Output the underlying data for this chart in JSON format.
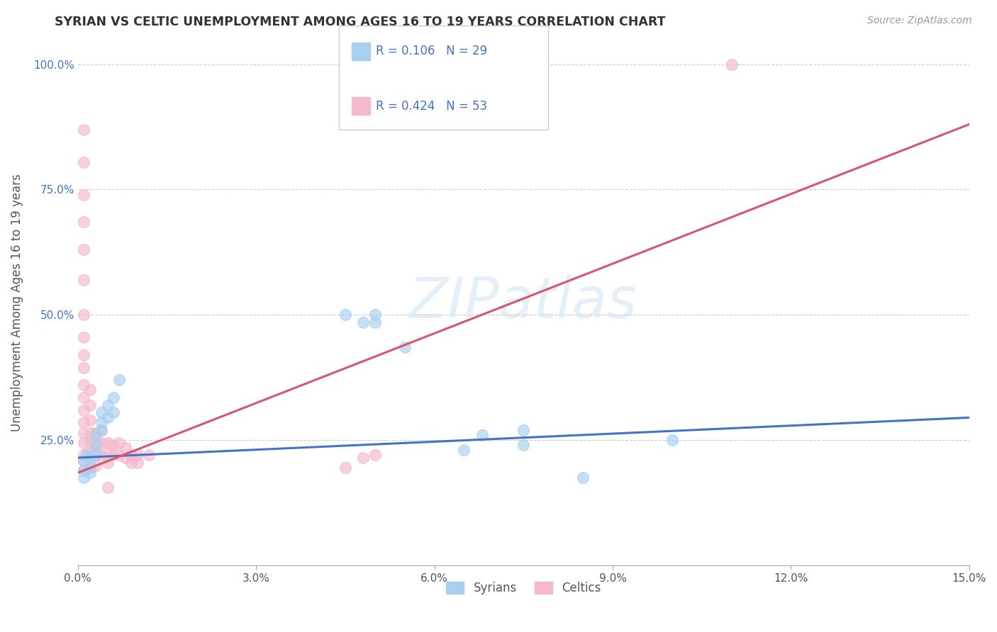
{
  "title": "SYRIAN VS CELTIC UNEMPLOYMENT AMONG AGES 16 TO 19 YEARS CORRELATION CHART",
  "source": "Source: ZipAtlas.com",
  "ylabel": "Unemployment Among Ages 16 to 19 years",
  "xlim": [
    0.0,
    0.15
  ],
  "ylim": [
    0.0,
    1.05
  ],
  "xticks": [
    0.0,
    0.03,
    0.06,
    0.09,
    0.12,
    0.15
  ],
  "xticklabels": [
    "0.0%",
    "3.0%",
    "6.0%",
    "9.0%",
    "12.0%",
    "15.0%"
  ],
  "yticks": [
    0.25,
    0.5,
    0.75,
    1.0
  ],
  "yticklabels": [
    "25.0%",
    "50.0%",
    "75.0%",
    "100.0%"
  ],
  "syrian_R": 0.106,
  "syrian_N": 29,
  "celtic_R": 0.424,
  "celtic_N": 53,
  "syrian_color": "#a8cff0",
  "celtic_color": "#f5b8cc",
  "syrian_line_color": "#4472c4",
  "celtic_line_color": "#d9546e",
  "syrian_line": [
    0.0,
    0.215,
    0.15,
    0.295
  ],
  "celtic_line": [
    0.0,
    0.185,
    0.15,
    0.88
  ],
  "syrian_points": [
    [
      0.001,
      0.19
    ],
    [
      0.001,
      0.21
    ],
    [
      0.001,
      0.175
    ],
    [
      0.0015,
      0.22
    ],
    [
      0.002,
      0.2
    ],
    [
      0.002,
      0.185
    ],
    [
      0.002,
      0.215
    ],
    [
      0.003,
      0.22
    ],
    [
      0.003,
      0.24
    ],
    [
      0.003,
      0.26
    ],
    [
      0.004,
      0.27
    ],
    [
      0.004,
      0.285
    ],
    [
      0.004,
      0.305
    ],
    [
      0.005,
      0.295
    ],
    [
      0.005,
      0.32
    ],
    [
      0.006,
      0.305
    ],
    [
      0.006,
      0.335
    ],
    [
      0.007,
      0.37
    ],
    [
      0.045,
      0.5
    ],
    [
      0.048,
      0.485
    ],
    [
      0.05,
      0.5
    ],
    [
      0.05,
      0.485
    ],
    [
      0.055,
      0.435
    ],
    [
      0.065,
      0.23
    ],
    [
      0.068,
      0.26
    ],
    [
      0.075,
      0.27
    ],
    [
      0.075,
      0.24
    ],
    [
      0.085,
      0.175
    ],
    [
      0.1,
      0.25
    ]
  ],
  "celtic_points": [
    [
      0.001,
      0.19
    ],
    [
      0.001,
      0.21
    ],
    [
      0.001,
      0.22
    ],
    [
      0.001,
      0.245
    ],
    [
      0.001,
      0.265
    ],
    [
      0.001,
      0.285
    ],
    [
      0.001,
      0.31
    ],
    [
      0.001,
      0.335
    ],
    [
      0.001,
      0.36
    ],
    [
      0.001,
      0.395
    ],
    [
      0.001,
      0.42
    ],
    [
      0.001,
      0.455
    ],
    [
      0.001,
      0.5
    ],
    [
      0.001,
      0.57
    ],
    [
      0.001,
      0.63
    ],
    [
      0.001,
      0.685
    ],
    [
      0.001,
      0.74
    ],
    [
      0.001,
      0.805
    ],
    [
      0.001,
      0.87
    ],
    [
      0.002,
      0.195
    ],
    [
      0.002,
      0.215
    ],
    [
      0.002,
      0.225
    ],
    [
      0.002,
      0.245
    ],
    [
      0.002,
      0.265
    ],
    [
      0.002,
      0.29
    ],
    [
      0.002,
      0.32
    ],
    [
      0.002,
      0.35
    ],
    [
      0.003,
      0.2
    ],
    [
      0.003,
      0.225
    ],
    [
      0.003,
      0.245
    ],
    [
      0.003,
      0.265
    ],
    [
      0.004,
      0.22
    ],
    [
      0.004,
      0.245
    ],
    [
      0.004,
      0.27
    ],
    [
      0.005,
      0.205
    ],
    [
      0.005,
      0.225
    ],
    [
      0.005,
      0.245
    ],
    [
      0.005,
      0.155
    ],
    [
      0.006,
      0.22
    ],
    [
      0.006,
      0.24
    ],
    [
      0.007,
      0.22
    ],
    [
      0.007,
      0.245
    ],
    [
      0.008,
      0.215
    ],
    [
      0.008,
      0.235
    ],
    [
      0.009,
      0.22
    ],
    [
      0.009,
      0.205
    ],
    [
      0.01,
      0.22
    ],
    [
      0.01,
      0.205
    ],
    [
      0.012,
      0.22
    ],
    [
      0.045,
      0.195
    ],
    [
      0.048,
      0.215
    ],
    [
      0.05,
      0.22
    ],
    [
      0.11,
      1.0
    ]
  ]
}
